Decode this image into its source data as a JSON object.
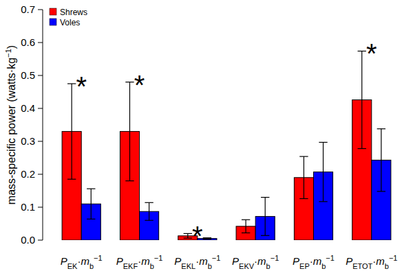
{
  "chart_data": {
    "type": "bar",
    "y_label": "mass-specific power (watts·kg−1)",
    "categories": [
      "PEK·mb−1",
      "PEKF·mb−1",
      "PEKL·mb−1",
      "PEKV·mb−1",
      "PEP·mb−1",
      "PETOT·mb−1"
    ],
    "series": [
      {
        "name": "Shrews",
        "color": "#ff0000",
        "values": [
          0.33,
          0.33,
          0.013,
          0.042,
          0.19,
          0.426
        ],
        "errors": [
          0.145,
          0.15,
          0.007,
          0.02,
          0.064,
          0.148
        ]
      },
      {
        "name": "Voles",
        "color": "#0000ff",
        "values": [
          0.11,
          0.087,
          0.005,
          0.072,
          0.207,
          0.243
        ],
        "errors": [
          0.046,
          0.027,
          0.002,
          0.058,
          0.09,
          0.095
        ]
      }
    ],
    "annotations": [
      "*",
      "*",
      "*",
      null,
      null,
      "*"
    ],
    "ylim": [
      0,
      0.7
    ],
    "yticks": [
      {
        "value": 0,
        "label": "0.0"
      },
      0.1,
      0.2,
      0.3,
      0.4,
      0.5,
      0.6,
      0.7
    ],
    "legend": "top-left",
    "grid": false
  }
}
